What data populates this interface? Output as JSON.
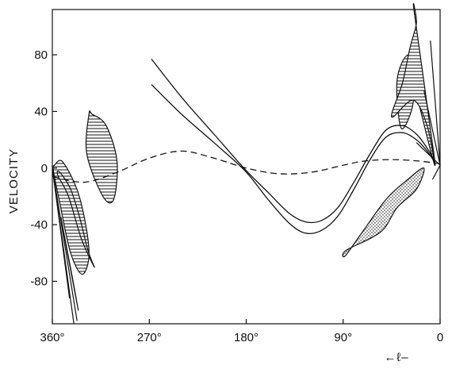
{
  "chart_data": {
    "type": "line",
    "title": "",
    "ylabel": "VELOCITY",
    "xlabel": "←ℓ–",
    "x_reversed": true,
    "xlim": [
      360,
      0
    ],
    "ylim": [
      -110,
      112
    ],
    "grid": false,
    "legend": "none",
    "x_ticks": [
      {
        "value": 360,
        "label": "360°"
      },
      {
        "value": 270,
        "label": "270°"
      },
      {
        "value": 180,
        "label": "180°"
      },
      {
        "value": 90,
        "label": "90°"
      },
      {
        "value": 0,
        "label": "0"
      }
    ],
    "y_ticks": [
      {
        "value": 80,
        "label": "80"
      },
      {
        "value": 40,
        "label": "40"
      },
      {
        "value": 0,
        "label": "0"
      },
      {
        "value": -40,
        "label": "-40"
      },
      {
        "value": -80,
        "label": "-80"
      }
    ],
    "series": [
      {
        "style": "dashed",
        "x": [
          0,
          20,
          45,
          70,
          90,
          120,
          150,
          180,
          210,
          240,
          270,
          300,
          330,
          360
        ],
        "y": [
          3,
          5,
          6,
          5,
          2,
          -3,
          -4,
          0,
          7,
          12,
          7,
          -3,
          -10,
          -6
        ]
      },
      {
        "style": "solid",
        "x": [
          268,
          240,
          210,
          181,
          160,
          140,
          125,
          110,
          95,
          80,
          65,
          50,
          35,
          22,
          12,
          5
        ],
        "y": [
          59,
          38,
          18,
          -2,
          -22,
          -39,
          -46,
          -44,
          -34,
          -15,
          6,
          22,
          25,
          20,
          12,
          4
        ]
      },
      {
        "style": "solid",
        "x": [
          268,
          240,
          210,
          181,
          160,
          140,
          125,
          110,
          95,
          80,
          65,
          50,
          35,
          22,
          12,
          5
        ],
        "y": [
          77,
          50,
          24,
          -1,
          -17,
          -32,
          -38,
          -37,
          -28,
          -10,
          10,
          27,
          30,
          24,
          14,
          5
        ]
      }
    ],
    "features": [
      {
        "style": "hatched",
        "x": [
          28,
          25,
          36,
          40,
          29,
          17,
          5
        ],
        "y": [
          70,
          46,
          28,
          62,
          80,
          60,
          2
        ]
      },
      {
        "style": "hatched",
        "x": [
          24,
          22,
          28,
          35,
          45,
          25,
          12,
          5
        ],
        "y": [
          110,
          102,
          85,
          60,
          36,
          48,
          30,
          5
        ]
      },
      {
        "style": "hatched",
        "x": [
          358,
          350,
          335,
          326,
          332,
          343,
          353,
          359
        ],
        "y": [
          2,
          4,
          -20,
          -58,
          -75,
          -60,
          -25,
          -2
        ]
      },
      {
        "style": "hatched",
        "x": [
          355,
          345,
          333,
          321,
          327,
          335,
          343,
          353
        ],
        "y": [
          -5,
          -20,
          -50,
          -70,
          -58,
          -34,
          -15,
          -3
        ]
      },
      {
        "style": "hatched",
        "x": [
          326,
          323,
          310,
          300,
          303,
          313,
          328
        ],
        "y": [
          38,
          38,
          30,
          5,
          -22,
          -20,
          10
        ]
      },
      {
        "style": "stippled",
        "x": [
          87,
          88,
          72,
          50,
          30,
          15,
          22,
          40,
          55
        ],
        "y": [
          -58,
          -62,
          -45,
          -22,
          -8,
          0,
          -15,
          -28,
          -45
        ]
      },
      {
        "style": "stippled",
        "x": [
          352,
          346,
          339,
          336,
          342
        ],
        "y": [
          -35,
          -60,
          -88,
          -100,
          -75
        ]
      }
    ]
  }
}
